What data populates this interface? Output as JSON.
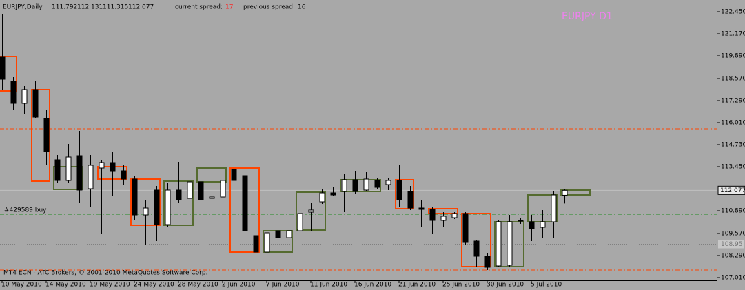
{
  "chart_data": {
    "type": "candlestick",
    "title": "EURJPY,Daily",
    "watermark": "EURJPY  D1",
    "footer": "MT4 ECN - ATC Brokers, © 2001-2010 MetaQuotes Software Corp.",
    "spread": {
      "current_label": "current spread:",
      "current": 17,
      "previous_label": "previous spread:",
      "previous": 16
    },
    "categories": [
      "10 May 2010",
      null,
      null,
      null,
      "14 May 2010",
      null,
      null,
      null,
      "19 May 2010",
      null,
      null,
      null,
      "24 May 2010",
      null,
      null,
      null,
      "28 May 2010",
      null,
      null,
      null,
      "2 Jun 2010",
      null,
      null,
      null,
      "7 Jun 2010",
      null,
      null,
      null,
      "11 Jun 2010",
      null,
      null,
      null,
      "16 Jun 2010",
      null,
      null,
      null,
      "21 Jun 2010",
      null,
      null,
      null,
      "25 Jun 2010",
      null,
      null,
      null,
      "30 Jun 2010",
      null,
      null,
      null,
      "5 Jul 2010",
      null,
      null,
      null
    ],
    "open": [
      119.81,
      118.41,
      117.13,
      117.93,
      116.25,
      113.85,
      112.65,
      114.09,
      112.17,
      113.37,
      113.69,
      113.21,
      112.73,
      110.65,
      112.09,
      110.09,
      112.09,
      111.61,
      112.57,
      111.61,
      111.69,
      113.29,
      112.93,
      109.45,
      108.49,
      109.73,
      109.33,
      109.73,
      110.81,
      111.41,
      111.93,
      112.01,
      112.69,
      112.09,
      112.65,
      112.41,
      112.65,
      112.01,
      111.05,
      110.97,
      110.33,
      110.49,
      110.73,
      109.13,
      108.25,
      107.69,
      107.73,
      110.29,
      110.25,
      109.93,
      110.25,
      111.792
    ],
    "high": [
      122.33,
      118.65,
      118.13,
      118.41,
      116.73,
      114.13,
      114.77,
      115.53,
      114.13,
      113.85,
      114.33,
      113.53,
      112.93,
      111.53,
      112.33,
      112.53,
      113.73,
      113.3,
      112.93,
      112.93,
      113.33,
      114.09,
      113.05,
      109.93,
      110.93,
      110.25,
      110.13,
      110.93,
      111.33,
      112.13,
      112.25,
      113.05,
      113.21,
      113.13,
      112.81,
      112.81,
      113.53,
      112.33,
      111.53,
      111.13,
      110.81,
      110.81,
      110.81,
      109.21,
      108.41,
      110.33,
      110.65,
      110.45,
      110.65,
      110.93,
      112.01,
      112.131
    ],
    "low": [
      117.93,
      116.73,
      116.53,
      116.25,
      113.53,
      112.53,
      112.53,
      111.33,
      111.13,
      109.53,
      111.73,
      112.41,
      110.33,
      108.93,
      109.13,
      109.93,
      111.33,
      111.2,
      111.13,
      111.33,
      111.13,
      112.33,
      109.53,
      108.13,
      108.41,
      108.53,
      109.13,
      109.61,
      109.73,
      111.29,
      111.73,
      110.81,
      111.89,
      112.01,
      112.17,
      112.09,
      111.13,
      110.93,
      109.93,
      109.53,
      109.93,
      110.41,
      108.93,
      107.61,
      107.45,
      107.61,
      107.61,
      110.13,
      109.13,
      109.33,
      109.33,
      111.315
    ],
    "close": [
      118.53,
      117.13,
      117.93,
      116.33,
      114.33,
      112.65,
      114.01,
      112.09,
      113.53,
      113.69,
      113.21,
      112.73,
      110.65,
      111.05,
      110.09,
      112.09,
      111.53,
      112.57,
      111.53,
      111.69,
      112.65,
      112.65,
      109.73,
      108.49,
      109.61,
      109.33,
      109.73,
      110.73,
      110.93,
      111.93,
      111.81,
      112.69,
      112.01,
      112.73,
      112.25,
      112.65,
      111.53,
      111.05,
      110.97,
      110.33,
      110.57,
      110.73,
      109.05,
      108.25,
      107.61,
      110.25,
      110.25,
      110.33,
      109.85,
      110.25,
      111.81,
      112.077
    ],
    "bull_color": "#ffffff",
    "bear_color": "#000000",
    "ylim": [
      106.85,
      122.93
    ],
    "yticks": [
      {
        "value": 122.45,
        "label": "122.450"
      },
      {
        "value": 121.17,
        "label": "121.170"
      },
      {
        "value": 119.89,
        "label": "119.890"
      },
      {
        "value": 118.57,
        "label": "118.570"
      },
      {
        "value": 117.29,
        "label": "117.290"
      },
      {
        "value": 116.01,
        "label": "116.010"
      },
      {
        "value": 114.73,
        "label": "114.730"
      },
      {
        "value": 113.45,
        "label": "113.450"
      },
      {
        "value": 110.89,
        "label": "110.890"
      },
      {
        "value": 109.57,
        "label": "109.570"
      },
      {
        "value": 108.29,
        "label": "108.290"
      },
      {
        "value": 107.01,
        "label": "107.010"
      }
    ],
    "boxes": [
      {
        "start": 0,
        "end": 1,
        "top": 119.85,
        "bottom": 117.85,
        "color": "#ff4500"
      },
      {
        "start": 3,
        "end": 4,
        "top": 117.93,
        "bottom": 112.61,
        "color": "#ff4500"
      },
      {
        "start": 5,
        "end": 7,
        "top": 113.45,
        "bottom": 112.13,
        "color": "#556b2f"
      },
      {
        "start": 9,
        "end": 11,
        "top": 113.45,
        "bottom": 112.73,
        "color": "#ff4500"
      },
      {
        "start": 12,
        "end": 14,
        "top": 112.73,
        "bottom": 110.05,
        "color": "#ff4500"
      },
      {
        "start": 15,
        "end": 17,
        "top": 112.61,
        "bottom": 110.05,
        "color": "#556b2f"
      },
      {
        "start": 18,
        "end": 20,
        "top": 113.37,
        "bottom": 112.57,
        "color": "#556b2f"
      },
      {
        "start": 21,
        "end": 23,
        "top": 113.37,
        "bottom": 108.49,
        "color": "#ff4500"
      },
      {
        "start": 24,
        "end": 26,
        "top": 109.73,
        "bottom": 108.49,
        "color": "#556b2f"
      },
      {
        "start": 27,
        "end": 29,
        "top": 111.97,
        "bottom": 109.77,
        "color": "#556b2f"
      },
      {
        "start": 31,
        "end": 34,
        "top": 112.69,
        "bottom": 112.01,
        "color": "#556b2f"
      },
      {
        "start": 36,
        "end": 37,
        "top": 112.69,
        "bottom": 111.01,
        "color": "#ff4500"
      },
      {
        "start": 39,
        "end": 41,
        "top": 111.01,
        "bottom": 110.73,
        "color": "#ff4500"
      },
      {
        "start": 42,
        "end": 44,
        "top": 110.73,
        "bottom": 107.65,
        "color": "#ff4500"
      },
      {
        "start": 45,
        "end": 47,
        "top": 110.25,
        "bottom": 107.65,
        "color": "#556b2f"
      },
      {
        "start": 48,
        "end": 50,
        "top": 111.81,
        "bottom": 110.25,
        "color": "#556b2f"
      },
      {
        "start": 51,
        "end": 53,
        "top": 112.09,
        "bottom": 111.81,
        "color": "#556b2f"
      }
    ],
    "levels": [
      {
        "value": 115.65,
        "color": "#ff4500"
      },
      {
        "value": 110.69,
        "color": "#228b22",
        "label": "#429589 buy"
      },
      {
        "value": 107.45,
        "color": "#ff4500"
      }
    ],
    "price_tags": [
      {
        "value": 108.95,
        "color": "#808080"
      }
    ]
  }
}
